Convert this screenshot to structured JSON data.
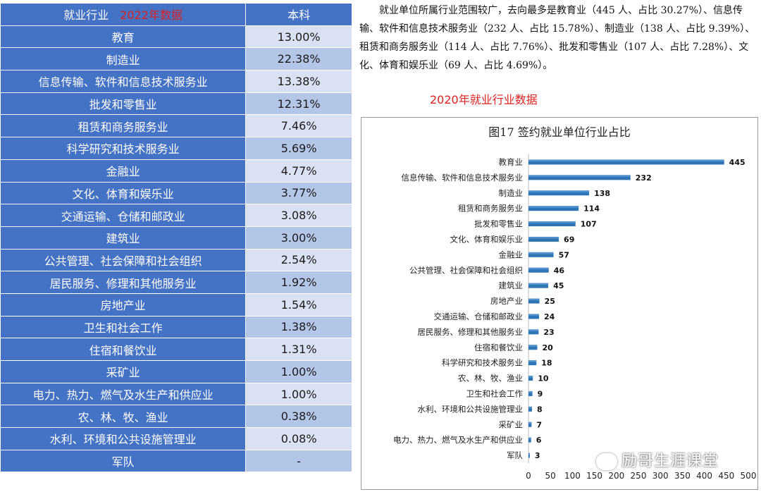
{
  "table": {
    "header_industry": "就业行业",
    "header_tag": "2022年数据",
    "header_value": "本科",
    "rows": [
      {
        "industry": "教育",
        "value": "13.00%"
      },
      {
        "industry": "制造业",
        "value": "22.38%"
      },
      {
        "industry": "信息传输、软件和信息技术服务业",
        "value": "13.38%"
      },
      {
        "industry": "批发和零售业",
        "value": "12.31%"
      },
      {
        "industry": "租赁和商务服务业",
        "value": "7.46%"
      },
      {
        "industry": "科学研究和技术服务业",
        "value": "5.69%"
      },
      {
        "industry": "金融业",
        "value": "4.77%"
      },
      {
        "industry": "文化、体育和娱乐业",
        "value": "3.77%"
      },
      {
        "industry": "交通运输、仓储和邮政业",
        "value": "3.08%"
      },
      {
        "industry": "建筑业",
        "value": "3.00%"
      },
      {
        "industry": "公共管理、社会保障和社会组织",
        "value": "2.54%"
      },
      {
        "industry": "居民服务、修理和其他服务业",
        "value": "1.92%"
      },
      {
        "industry": "房地产业",
        "value": "1.54%"
      },
      {
        "industry": "卫生和社会工作",
        "value": "1.38%"
      },
      {
        "industry": "住宿和餐饮业",
        "value": "1.31%"
      },
      {
        "industry": "采矿业",
        "value": "1.00%"
      },
      {
        "industry": "电力、热力、燃气及水生产和供应业",
        "value": "1.00%"
      },
      {
        "industry": "农、林、牧、渔业",
        "value": "0.38%"
      },
      {
        "industry": "水利、环境和公共设施管理业",
        "value": "0.08%"
      },
      {
        "industry": "军队",
        "value": "-"
      }
    ]
  },
  "text": {
    "paragraph": "就业单位所属行业范围较广，去向最多是教育业（445 人、占比 30.27%）、信息传输、软件和信息技术服务业（232 人、占比 15.78%）、制造业（138 人、占比 9.39%）、租赁和商务服务业（114 人、占比 7.76%）、批发和零售业（107 人、占比 7.28%）、文化、体育和娱乐业（69 人、占比 4.69%）。",
    "red_title": "2020年就业行业数据"
  },
  "watermark": "励哥生涯课堂",
  "colors": {
    "header_blue": "#4472C4",
    "bar_blue": "#2E75B6",
    "red": "#e02020"
  },
  "chart_data": {
    "type": "bar",
    "orientation": "horizontal",
    "title": "图17  签约就业单位行业占比",
    "categories": [
      "教育业",
      "信息传输、软件和信息技术服务业",
      "制造业",
      "租赁和商务服务业",
      "批发和零售业",
      "文化、体育和娱乐业",
      "金融业",
      "公共管理、社会保障和社会组织",
      "建筑业",
      "房地产业",
      "交通运输、仓储和邮政业",
      "居民服务、修理和其他服务业",
      "住宿和餐饮业",
      "科学研究和技术服务业",
      "农、林、牧、渔业",
      "卫生和社会工作",
      "水利、环境和公共设施管理业",
      "采矿业",
      "电力、热力、燃气及水生产和供应业",
      "军队"
    ],
    "values": [
      445,
      232,
      138,
      114,
      107,
      69,
      57,
      46,
      45,
      25,
      24,
      23,
      20,
      18,
      10,
      9,
      8,
      7,
      6,
      3
    ],
    "xlim": [
      0,
      500
    ],
    "xticks": [
      0,
      50,
      100,
      150,
      200,
      250,
      300,
      350,
      400,
      450,
      500
    ],
    "grid": false,
    "legend": "none"
  }
}
